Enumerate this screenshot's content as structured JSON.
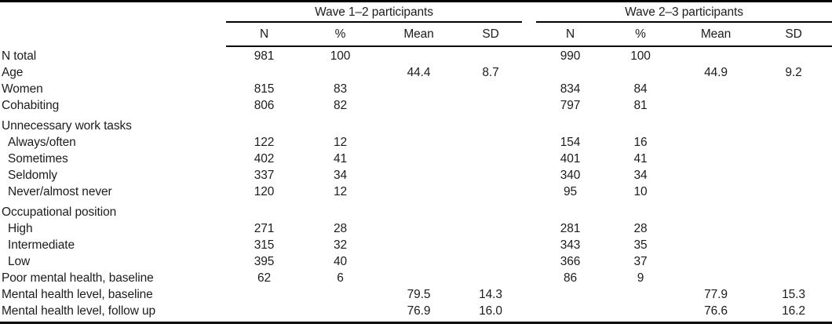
{
  "chart_data": {
    "type": "table",
    "column_groups": [
      "Wave 1–2 participants",
      "Wave 2–3 participants"
    ],
    "columns": [
      "N",
      "%",
      "Mean",
      "SD",
      "N",
      "%",
      "Mean",
      "SD"
    ],
    "rows": [
      {
        "label": "N total",
        "indent": false,
        "gap_above": false,
        "cells": [
          "981",
          "100",
          "",
          "",
          "990",
          "100",
          "",
          ""
        ]
      },
      {
        "label": "Age",
        "indent": false,
        "gap_above": false,
        "cells": [
          "",
          "",
          "44.4",
          "8.7",
          "",
          "",
          "44.9",
          "9.2"
        ]
      },
      {
        "label": "Women",
        "indent": false,
        "gap_above": false,
        "cells": [
          "815",
          "83",
          "",
          "",
          "834",
          "84",
          "",
          ""
        ]
      },
      {
        "label": "Cohabiting",
        "indent": false,
        "gap_above": false,
        "cells": [
          "806",
          "82",
          "",
          "",
          "797",
          "81",
          "",
          ""
        ]
      },
      {
        "label": "Unnecessary work tasks",
        "indent": false,
        "gap_above": true,
        "cells": [
          "",
          "",
          "",
          "",
          "",
          "",
          "",
          ""
        ]
      },
      {
        "label": "Always/often",
        "indent": true,
        "gap_above": false,
        "cells": [
          "122",
          "12",
          "",
          "",
          "154",
          "16",
          "",
          ""
        ]
      },
      {
        "label": "Sometimes",
        "indent": true,
        "gap_above": false,
        "cells": [
          "402",
          "41",
          "",
          "",
          "401",
          "41",
          "",
          ""
        ]
      },
      {
        "label": "Seldomly",
        "indent": true,
        "gap_above": false,
        "cells": [
          "337",
          "34",
          "",
          "",
          "340",
          "34",
          "",
          ""
        ]
      },
      {
        "label": "Never/almost never",
        "indent": true,
        "gap_above": false,
        "cells": [
          "120",
          "12",
          "",
          "",
          "95",
          "10",
          "",
          ""
        ]
      },
      {
        "label": "Occupational position",
        "indent": false,
        "gap_above": true,
        "cells": [
          "",
          "",
          "",
          "",
          "",
          "",
          "",
          ""
        ]
      },
      {
        "label": "High",
        "indent": true,
        "gap_above": false,
        "cells": [
          "271",
          "28",
          "",
          "",
          "281",
          "28",
          "",
          ""
        ]
      },
      {
        "label": "Intermediate",
        "indent": true,
        "gap_above": false,
        "cells": [
          "315",
          "32",
          "",
          "",
          "343",
          "35",
          "",
          ""
        ]
      },
      {
        "label": "Low",
        "indent": true,
        "gap_above": false,
        "cells": [
          "395",
          "40",
          "",
          "",
          "366",
          "37",
          "",
          ""
        ]
      },
      {
        "label": "Poor mental health, baseline",
        "indent": false,
        "gap_above": false,
        "cells": [
          "62",
          "6",
          "",
          "",
          "86",
          "9",
          "",
          ""
        ]
      },
      {
        "label": "Mental health level, baseline",
        "indent": false,
        "gap_above": false,
        "cells": [
          "",
          "",
          "79.5",
          "14.3",
          "",
          "",
          "77.9",
          "15.3"
        ]
      },
      {
        "label": "Mental health level, follow up",
        "indent": false,
        "gap_above": false,
        "cells": [
          "",
          "",
          "76.9",
          "16.0",
          "",
          "",
          "76.6",
          "16.2"
        ]
      }
    ]
  },
  "colors": {
    "text": "#1c1c1c",
    "rule": "#000000",
    "background": "#ffffff"
  }
}
